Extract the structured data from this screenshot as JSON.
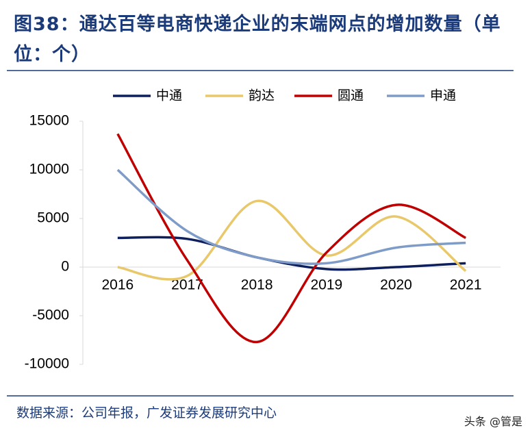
{
  "chart_data": {
    "type": "line",
    "title": "图38：通达百等电商快递企业的末端网点的增加数量（单位：个）",
    "source": "数据来源：公司年报，广发证券发展研究中心",
    "watermark": "头条 @管是",
    "categories": [
      "2016",
      "2017",
      "2018",
      "2019",
      "2020",
      "2021"
    ],
    "series": [
      {
        "name": "中通",
        "color": "#0d1f5c",
        "values": [
          3000,
          2900,
          1000,
          -200,
          0,
          400
        ]
      },
      {
        "name": "韵达",
        "color": "#e8c86a",
        "values": [
          0,
          -900,
          6800,
          1200,
          5200,
          -400
        ]
      },
      {
        "name": "圆通",
        "color": "#c00000",
        "values": [
          13700,
          700,
          -7700,
          1500,
          6400,
          3000
        ]
      },
      {
        "name": "申通",
        "color": "#7f9cc9",
        "values": [
          10000,
          3700,
          1000,
          400,
          2000,
          2500
        ]
      }
    ],
    "ylim": [
      -10000,
      15000
    ],
    "yticks": [
      -10000,
      -5000,
      0,
      5000,
      10000,
      15000
    ]
  }
}
